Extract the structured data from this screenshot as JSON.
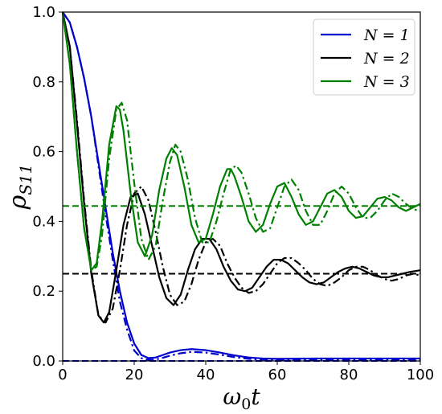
{
  "chart_data": {
    "type": "line",
    "xlabel": "ω",
    "xlabel_sub": "0",
    "xlabel_suffix": "t",
    "ylabel": "ρ",
    "ylabel_sub": "S11",
    "xlim": [
      0,
      100
    ],
    "ylim": [
      0,
      1.0
    ],
    "xticks": [
      "0",
      "20",
      "40",
      "60",
      "80",
      "100"
    ],
    "yticks": [
      "0.0",
      "0.2",
      "0.4",
      "0.6",
      "0.8",
      "1.0"
    ],
    "grid": false,
    "legend_position": "top-right",
    "legend": [
      {
        "label": "N = 1",
        "color": "#0000cc"
      },
      {
        "label": "N = 2",
        "color": "#000000"
      },
      {
        "label": "N = 3",
        "color": "#008000"
      }
    ],
    "series": [
      {
        "group": 1,
        "style": "solid",
        "color": "#0000cc",
        "x": [
          0,
          2,
          4,
          6,
          8,
          10,
          12,
          14,
          16,
          18,
          20,
          22,
          24,
          26,
          28,
          30,
          33,
          36,
          40,
          44,
          48,
          52,
          56,
          60,
          70,
          80,
          90,
          100
        ],
        "y": [
          1.0,
          0.97,
          0.9,
          0.81,
          0.7,
          0.57,
          0.44,
          0.31,
          0.2,
          0.11,
          0.05,
          0.017,
          0.008,
          0.01,
          0.017,
          0.024,
          0.031,
          0.034,
          0.031,
          0.024,
          0.016,
          0.01,
          0.007,
          0.006,
          0.007,
          0.007,
          0.007,
          0.007
        ]
      },
      {
        "group": 1,
        "style": "dashdot",
        "color": "#0000cc",
        "x": [
          0,
          2,
          4,
          6,
          8,
          10,
          12,
          14,
          16,
          18,
          20,
          22,
          24,
          26,
          28,
          30,
          33,
          36,
          40,
          44,
          48,
          52,
          56,
          60,
          70,
          80,
          90,
          100
        ],
        "y": [
          1.0,
          0.97,
          0.9,
          0.81,
          0.7,
          0.56,
          0.42,
          0.29,
          0.17,
          0.09,
          0.03,
          0.008,
          0.003,
          0.004,
          0.009,
          0.015,
          0.022,
          0.026,
          0.024,
          0.018,
          0.011,
          0.006,
          0.004,
          0.003,
          0.002,
          0.002,
          0.002,
          0.002
        ]
      },
      {
        "group": 2,
        "style": "solid",
        "color": "#000000",
        "x": [
          0,
          2,
          4,
          6,
          8,
          10,
          11.5,
          13,
          15,
          17,
          19,
          21,
          23,
          25,
          27,
          29,
          31,
          33,
          35,
          37,
          39,
          41,
          43,
          45,
          47,
          49,
          51,
          53,
          55,
          57,
          59,
          61,
          63,
          65,
          67,
          69,
          71,
          73,
          75,
          77,
          79,
          81,
          83,
          85,
          87,
          89,
          91,
          93,
          95,
          97,
          100
        ],
        "y": [
          1.0,
          0.9,
          0.68,
          0.45,
          0.25,
          0.13,
          0.11,
          0.14,
          0.26,
          0.39,
          0.47,
          0.48,
          0.42,
          0.33,
          0.24,
          0.18,
          0.16,
          0.19,
          0.26,
          0.32,
          0.35,
          0.35,
          0.32,
          0.27,
          0.23,
          0.205,
          0.2,
          0.21,
          0.24,
          0.27,
          0.29,
          0.29,
          0.28,
          0.26,
          0.24,
          0.225,
          0.22,
          0.225,
          0.24,
          0.255,
          0.265,
          0.27,
          0.265,
          0.255,
          0.245,
          0.24,
          0.24,
          0.245,
          0.25,
          0.255,
          0.26
        ]
      },
      {
        "group": 2,
        "style": "dashdot",
        "color": "#000000",
        "x": [
          0,
          2,
          4,
          6,
          8,
          10,
          12,
          14,
          16,
          18,
          20,
          22,
          24,
          26,
          28,
          30,
          32,
          34,
          36,
          38,
          40,
          42,
          44,
          46,
          48,
          50,
          52,
          54,
          56,
          58,
          60,
          62,
          64,
          66,
          68,
          70,
          72,
          74,
          76,
          78,
          80,
          82,
          84,
          86,
          88,
          90,
          92,
          94,
          96,
          98,
          100
        ],
        "y": [
          1.0,
          0.9,
          0.69,
          0.46,
          0.26,
          0.13,
          0.11,
          0.15,
          0.26,
          0.39,
          0.48,
          0.5,
          0.46,
          0.37,
          0.27,
          0.19,
          0.16,
          0.17,
          0.22,
          0.29,
          0.34,
          0.35,
          0.33,
          0.28,
          0.24,
          0.21,
          0.195,
          0.2,
          0.22,
          0.25,
          0.28,
          0.295,
          0.295,
          0.28,
          0.26,
          0.235,
          0.22,
          0.215,
          0.225,
          0.24,
          0.26,
          0.27,
          0.27,
          0.26,
          0.245,
          0.235,
          0.23,
          0.235,
          0.245,
          0.25,
          0.245
        ]
      },
      {
        "group": 3,
        "style": "solid",
        "color": "#008000",
        "x": [
          0,
          2,
          4,
          6,
          8,
          9.5,
          11,
          13,
          15,
          16,
          17,
          19,
          21,
          23,
          25,
          27,
          29,
          30.5,
          32,
          34,
          36,
          38,
          40,
          42,
          44,
          46,
          47,
          48,
          50,
          52,
          54,
          56,
          58,
          60,
          62,
          64,
          66,
          68,
          70,
          72,
          74,
          76,
          78,
          80,
          82,
          84,
          86,
          88,
          90,
          92,
          94,
          96,
          98,
          100
        ],
        "y": [
          1.0,
          0.85,
          0.6,
          0.38,
          0.26,
          0.28,
          0.4,
          0.62,
          0.73,
          0.72,
          0.66,
          0.48,
          0.34,
          0.3,
          0.36,
          0.49,
          0.58,
          0.61,
          0.59,
          0.5,
          0.39,
          0.34,
          0.35,
          0.42,
          0.5,
          0.55,
          0.55,
          0.53,
          0.47,
          0.4,
          0.37,
          0.39,
          0.45,
          0.5,
          0.51,
          0.47,
          0.42,
          0.39,
          0.4,
          0.44,
          0.48,
          0.49,
          0.47,
          0.43,
          0.41,
          0.415,
          0.44,
          0.465,
          0.47,
          0.46,
          0.44,
          0.43,
          0.44,
          0.45
        ]
      },
      {
        "group": 3,
        "style": "dashdot",
        "color": "#008000",
        "x": [
          0,
          2,
          4,
          6,
          8,
          9.5,
          11,
          13,
          15,
          16.5,
          18,
          20,
          22,
          24,
          26,
          28,
          30,
          31.5,
          33,
          35,
          37,
          39,
          41,
          43,
          45,
          47,
          48.5,
          50,
          52,
          54,
          56,
          58,
          60,
          62,
          64,
          66,
          68,
          70,
          72,
          74,
          76,
          78,
          80,
          82,
          84,
          86,
          88,
          90,
          92,
          94,
          96,
          98,
          100
        ],
        "y": [
          1.0,
          0.85,
          0.6,
          0.38,
          0.26,
          0.27,
          0.36,
          0.58,
          0.72,
          0.74,
          0.69,
          0.51,
          0.35,
          0.29,
          0.33,
          0.46,
          0.57,
          0.62,
          0.6,
          0.52,
          0.41,
          0.34,
          0.34,
          0.4,
          0.48,
          0.55,
          0.56,
          0.54,
          0.48,
          0.41,
          0.37,
          0.38,
          0.44,
          0.5,
          0.52,
          0.49,
          0.43,
          0.39,
          0.39,
          0.43,
          0.48,
          0.5,
          0.48,
          0.44,
          0.41,
          0.41,
          0.43,
          0.46,
          0.48,
          0.47,
          0.45,
          0.435,
          0.43
        ]
      }
    ],
    "reference_lines": [
      {
        "y": 0.0,
        "color": "#0000cc",
        "style": "dashed"
      },
      {
        "y": 0.25,
        "color": "#000000",
        "style": "dashed"
      },
      {
        "y": 0.444,
        "color": "#008000",
        "style": "dashed"
      }
    ]
  }
}
